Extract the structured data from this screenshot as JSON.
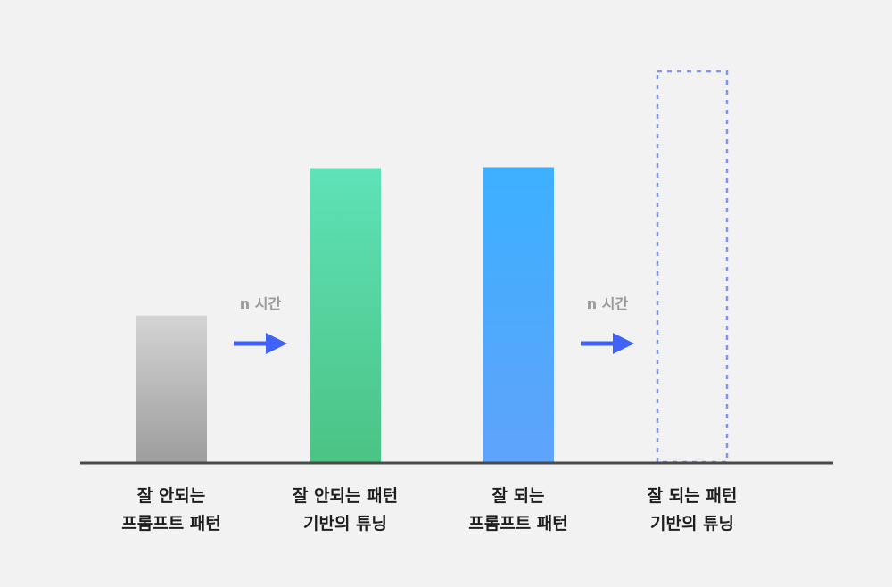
{
  "chart_data": {
    "type": "bar",
    "categories": [
      [
        "잘 안되는",
        "프롬프트 패턴"
      ],
      [
        "잘 안되는 패턴",
        "기반의 튜닝"
      ],
      [
        "잘 되는",
        "프롬프트 패턴"
      ],
      [
        "잘 되는 패턴",
        "기반의 튜닝"
      ]
    ],
    "values": [
      166,
      332,
      333,
      442
    ],
    "ylim": [
      0,
      445
    ],
    "bar_styles": [
      {
        "fill": "solid",
        "gradient": [
          "#d4d4d4",
          "#9d9d9d"
        ]
      },
      {
        "fill": "solid",
        "gradient": [
          "#5fe2b8",
          "#4bc384"
        ]
      },
      {
        "fill": "solid",
        "gradient": [
          "#3cb0fe",
          "#5fa3fc"
        ]
      },
      {
        "fill": "dashed-outline",
        "stroke": "#7a97f5"
      }
    ],
    "transitions": [
      {
        "from": 0,
        "to": 1,
        "label": "n 시간",
        "color": "#3e63f5"
      },
      {
        "from": 2,
        "to": 3,
        "label": "n 시간",
        "color": "#3e63f5"
      }
    ],
    "baseline_color": "#4a4a4a",
    "grid": false,
    "legend": "none"
  }
}
